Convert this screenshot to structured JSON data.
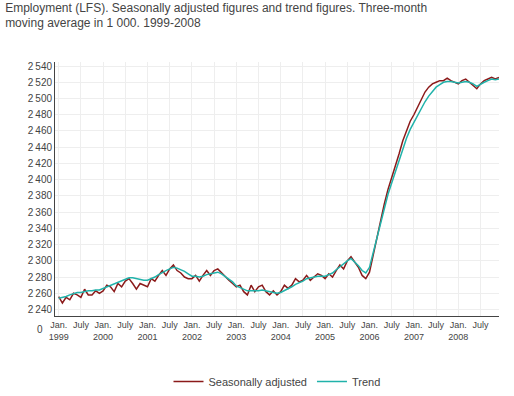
{
  "chart_data": {
    "type": "line",
    "title": "Employment (LFS). Seasonally adjusted figures and trend figures. Three-month\nmoving average in 1 000. 1999-2008",
    "categories": [
      "Jan.\n1999",
      null,
      null,
      null,
      null,
      null,
      "July",
      null,
      null,
      null,
      null,
      null,
      "Jan.\n2000",
      null,
      null,
      null,
      null,
      null,
      "July",
      null,
      null,
      null,
      null,
      null,
      "Jan.\n2001",
      null,
      null,
      null,
      null,
      null,
      "July",
      null,
      null,
      null,
      null,
      null,
      "Jan.\n2002",
      null,
      null,
      null,
      null,
      null,
      "July",
      null,
      null,
      null,
      null,
      null,
      "Jan.\n2003",
      null,
      null,
      null,
      null,
      null,
      "July",
      null,
      null,
      null,
      null,
      null,
      "Jan.\n2004",
      null,
      null,
      null,
      null,
      null,
      "July",
      null,
      null,
      null,
      null,
      null,
      "Jan.\n2005",
      null,
      null,
      null,
      null,
      null,
      "July",
      null,
      null,
      null,
      null,
      null,
      "Jan.\n2006",
      null,
      null,
      null,
      null,
      null,
      "July",
      null,
      null,
      null,
      null,
      null,
      "Jan.\n2007",
      null,
      null,
      null,
      null,
      null,
      "July",
      null,
      null,
      null,
      null,
      null,
      "Jan.\n2008",
      null,
      null,
      null,
      null,
      null,
      "July",
      null,
      null,
      null,
      null,
      null
    ],
    "series": [
      {
        "name": "Seasonally adjusted",
        "color": "#8B1A1A",
        "values": [
          2256,
          2248,
          2255,
          2252,
          2260,
          2258,
          2255,
          2265,
          2258,
          2258,
          2263,
          2260,
          2263,
          2270,
          2268,
          2262,
          2272,
          2268,
          2275,
          2278,
          2272,
          2265,
          2272,
          2270,
          2268,
          2278,
          2275,
          2282,
          2288,
          2282,
          2290,
          2295,
          2288,
          2285,
          2280,
          2278,
          2278,
          2282,
          2275,
          2282,
          2288,
          2282,
          2288,
          2290,
          2285,
          2280,
          2276,
          2272,
          2268,
          2270,
          2262,
          2258,
          2270,
          2262,
          2268,
          2270,
          2262,
          2258,
          2263,
          2258,
          2262,
          2270,
          2266,
          2270,
          2278,
          2274,
          2276,
          2282,
          2276,
          2280,
          2284,
          2282,
          2278,
          2284,
          2280,
          2288,
          2295,
          2290,
          2300,
          2305,
          2298,
          2292,
          2282,
          2278,
          2286,
          2308,
          2328,
          2350,
          2370,
          2388,
          2402,
          2418,
          2432,
          2448,
          2460,
          2472,
          2480,
          2490,
          2500,
          2508,
          2514,
          2518,
          2520,
          2522,
          2522,
          2525,
          2522,
          2520,
          2518,
          2522,
          2524,
          2520,
          2516,
          2512,
          2518,
          2522,
          2524,
          2526,
          2524,
          2526
        ]
      },
      {
        "name": "Trend",
        "color": "#20B2AA",
        "values": [
          2254,
          2255,
          2256,
          2258,
          2260,
          2261,
          2261,
          2262,
          2263,
          2263,
          2264,
          2264,
          2266,
          2268,
          2270,
          2271,
          2273,
          2275,
          2277,
          2279,
          2279,
          2278,
          2277,
          2276,
          2276,
          2278,
          2280,
          2283,
          2286,
          2288,
          2290,
          2292,
          2291,
          2289,
          2287,
          2284,
          2281,
          2281,
          2280,
          2281,
          2283,
          2284,
          2285,
          2286,
          2284,
          2281,
          2278,
          2274,
          2269,
          2267,
          2265,
          2263,
          2263,
          2263,
          2263,
          2264,
          2263,
          2262,
          2261,
          2260,
          2261,
          2263,
          2265,
          2268,
          2271,
          2273,
          2275,
          2278,
          2279,
          2280,
          2281,
          2281,
          2281,
          2283,
          2285,
          2289,
          2293,
          2296,
          2300,
          2303,
          2299,
          2294,
          2288,
          2285,
          2292,
          2310,
          2328,
          2348,
          2366,
          2382,
          2396,
          2410,
          2424,
          2438,
          2451,
          2462,
          2471,
          2480,
          2489,
          2496,
          2503,
          2509,
          2514,
          2517,
          2520,
          2521,
          2521,
          2520,
          2519,
          2520,
          2521,
          2520,
          2518,
          2515,
          2518,
          2520,
          2522,
          2524,
          2523,
          2524
        ]
      }
    ],
    "xlim": [
      -1,
      119
    ],
    "ylim": [
      2232,
      2545
    ],
    "yticks": [
      {
        "value": 2240,
        "label": "2 240"
      },
      {
        "value": 2260,
        "label": "2 260"
      },
      {
        "value": 2280,
        "label": "2 280"
      },
      {
        "value": 2300,
        "label": "2 300"
      },
      {
        "value": 2320,
        "label": "2 320"
      },
      {
        "value": 2340,
        "label": "2 340"
      },
      {
        "value": 2360,
        "label": "2 360"
      },
      {
        "value": 2380,
        "label": "2 380"
      },
      {
        "value": 2400,
        "label": "2 400"
      },
      {
        "value": 2420,
        "label": "2 420"
      },
      {
        "value": 2440,
        "label": "2 440"
      },
      {
        "value": 2460,
        "label": "2 460"
      },
      {
        "value": 2480,
        "label": "2 480"
      },
      {
        "value": 2500,
        "label": "2 500"
      },
      {
        "value": 2520,
        "label": "2 520"
      },
      {
        "value": 2540,
        "label": "2 540"
      }
    ],
    "annotations": [
      {
        "text": "0"
      }
    ],
    "grid": true,
    "legend": "bottom"
  }
}
